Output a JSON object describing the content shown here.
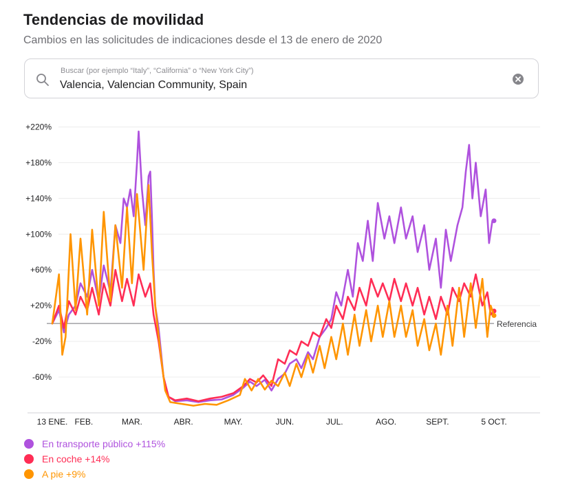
{
  "header": {
    "title": "Tendencias de movilidad",
    "subtitle": "Cambios en las solicitudes de indicaciones desde el 13 de enero de 2020"
  },
  "search": {
    "placeholder": "Buscar (por ejemplo “Italy”, “California” o “New York City”)",
    "value": "Valencia, Valencian Community, Spain",
    "search_icon": "search-icon",
    "clear_icon": "clear-icon"
  },
  "legend": [
    {
      "label": "En transporte público +115%",
      "color": "#af52de"
    },
    {
      "label": "En coche +14%",
      "color": "#ff2d55"
    },
    {
      "label": "A pie +9%",
      "color": "#ff9500"
    }
  ],
  "chart_data": {
    "type": "line",
    "title": "",
    "xlabel": "",
    "ylabel": "",
    "ylim": [
      -100,
      225
    ],
    "y_ticks": [
      220,
      180,
      140,
      100,
      60,
      20,
      -20,
      -60
    ],
    "y_tick_labels": [
      "+220%",
      "+180%",
      "+140%",
      "+100%",
      "+60%",
      "+20%",
      "-20%",
      "-60%"
    ],
    "x_ticks": [
      "2020-01-13",
      "2020-02-01",
      "2020-03-01",
      "2020-04-01",
      "2020-05-01",
      "2020-06-01",
      "2020-07-01",
      "2020-08-01",
      "2020-09-01",
      "2020-10-05"
    ],
    "x_tick_labels": [
      "13 ENE.",
      "FEB.",
      "MAR.",
      "ABR.",
      "MAY.",
      "JUN.",
      "JUL.",
      "AGO.",
      "SEPT.",
      "5 OCT."
    ],
    "baseline": {
      "value": 0,
      "label": "Referencia"
    },
    "grid": true,
    "series": [
      {
        "name": "En transporte público",
        "color": "#af52de",
        "points": [
          [
            "2020-01-13",
            0
          ],
          [
            "2020-01-17",
            15
          ],
          [
            "2020-01-20",
            -10
          ],
          [
            "2020-01-23",
            10
          ],
          [
            "2020-01-27",
            20
          ],
          [
            "2020-01-30",
            45
          ],
          [
            "2020-02-03",
            30
          ],
          [
            "2020-02-06",
            60
          ],
          [
            "2020-02-10",
            25
          ],
          [
            "2020-02-13",
            65
          ],
          [
            "2020-02-17",
            35
          ],
          [
            "2020-02-20",
            110
          ],
          [
            "2020-02-23",
            90
          ],
          [
            "2020-02-25",
            140
          ],
          [
            "2020-02-27",
            130
          ],
          [
            "2020-02-29",
            150
          ],
          [
            "2020-03-02",
            120
          ],
          [
            "2020-03-04",
            180
          ],
          [
            "2020-03-05",
            215
          ],
          [
            "2020-03-07",
            150
          ],
          [
            "2020-03-09",
            110
          ],
          [
            "2020-03-11",
            165
          ],
          [
            "2020-03-12",
            170
          ],
          [
            "2020-03-13",
            120
          ],
          [
            "2020-03-14",
            60
          ],
          [
            "2020-03-15",
            20
          ],
          [
            "2020-03-17",
            -5
          ],
          [
            "2020-03-20",
            -60
          ],
          [
            "2020-03-23",
            -82
          ],
          [
            "2020-03-27",
            -87
          ],
          [
            "2020-04-03",
            -86
          ],
          [
            "2020-04-10",
            -88
          ],
          [
            "2020-04-17",
            -86
          ],
          [
            "2020-04-24",
            -85
          ],
          [
            "2020-05-01",
            -80
          ],
          [
            "2020-05-07",
            -72
          ],
          [
            "2020-05-11",
            -65
          ],
          [
            "2020-05-15",
            -70
          ],
          [
            "2020-05-20",
            -63
          ],
          [
            "2020-05-24",
            -75
          ],
          [
            "2020-05-28",
            -62
          ],
          [
            "2020-06-01",
            -56
          ],
          [
            "2020-06-04",
            -45
          ],
          [
            "2020-06-08",
            -40
          ],
          [
            "2020-06-11",
            -50
          ],
          [
            "2020-06-15",
            -32
          ],
          [
            "2020-06-18",
            -40
          ],
          [
            "2020-06-22",
            -15
          ],
          [
            "2020-06-26",
            -5
          ],
          [
            "2020-06-29",
            5
          ],
          [
            "2020-07-02",
            35
          ],
          [
            "2020-07-05",
            20
          ],
          [
            "2020-07-09",
            60
          ],
          [
            "2020-07-12",
            30
          ],
          [
            "2020-07-15",
            90
          ],
          [
            "2020-07-18",
            70
          ],
          [
            "2020-07-21",
            115
          ],
          [
            "2020-07-24",
            70
          ],
          [
            "2020-07-27",
            135
          ],
          [
            "2020-07-31",
            95
          ],
          [
            "2020-08-03",
            120
          ],
          [
            "2020-08-06",
            90
          ],
          [
            "2020-08-10",
            130
          ],
          [
            "2020-08-13",
            95
          ],
          [
            "2020-08-17",
            120
          ],
          [
            "2020-08-20",
            80
          ],
          [
            "2020-08-24",
            110
          ],
          [
            "2020-08-27",
            60
          ],
          [
            "2020-08-31",
            95
          ],
          [
            "2020-09-03",
            40
          ],
          [
            "2020-09-06",
            105
          ],
          [
            "2020-09-09",
            70
          ],
          [
            "2020-09-13",
            110
          ],
          [
            "2020-09-16",
            130
          ],
          [
            "2020-09-18",
            170
          ],
          [
            "2020-09-20",
            200
          ],
          [
            "2020-09-22",
            140
          ],
          [
            "2020-09-24",
            180
          ],
          [
            "2020-09-27",
            120
          ],
          [
            "2020-09-30",
            150
          ],
          [
            "2020-10-02",
            90
          ],
          [
            "2020-10-04",
            115
          ],
          [
            "2020-10-05",
            115
          ]
        ]
      },
      {
        "name": "En coche",
        "color": "#ff2d55",
        "points": [
          [
            "2020-01-13",
            0
          ],
          [
            "2020-01-17",
            20
          ],
          [
            "2020-01-20",
            -5
          ],
          [
            "2020-01-23",
            25
          ],
          [
            "2020-01-27",
            10
          ],
          [
            "2020-01-30",
            30
          ],
          [
            "2020-02-03",
            15
          ],
          [
            "2020-02-06",
            40
          ],
          [
            "2020-02-10",
            10
          ],
          [
            "2020-02-13",
            45
          ],
          [
            "2020-02-17",
            20
          ],
          [
            "2020-02-20",
            60
          ],
          [
            "2020-02-24",
            25
          ],
          [
            "2020-02-27",
            50
          ],
          [
            "2020-03-02",
            20
          ],
          [
            "2020-03-05",
            55
          ],
          [
            "2020-03-09",
            30
          ],
          [
            "2020-03-12",
            45
          ],
          [
            "2020-03-14",
            10
          ],
          [
            "2020-03-17",
            -20
          ],
          [
            "2020-03-20",
            -60
          ],
          [
            "2020-03-23",
            -82
          ],
          [
            "2020-03-27",
            -86
          ],
          [
            "2020-04-03",
            -84
          ],
          [
            "2020-04-10",
            -87
          ],
          [
            "2020-04-17",
            -84
          ],
          [
            "2020-04-24",
            -82
          ],
          [
            "2020-05-01",
            -78
          ],
          [
            "2020-05-07",
            -70
          ],
          [
            "2020-05-11",
            -62
          ],
          [
            "2020-05-15",
            -66
          ],
          [
            "2020-05-19",
            -58
          ],
          [
            "2020-05-24",
            -70
          ],
          [
            "2020-05-28",
            -40
          ],
          [
            "2020-06-01",
            -45
          ],
          [
            "2020-06-04",
            -30
          ],
          [
            "2020-06-08",
            -35
          ],
          [
            "2020-06-11",
            -20
          ],
          [
            "2020-06-15",
            -25
          ],
          [
            "2020-06-18",
            -10
          ],
          [
            "2020-06-22",
            -15
          ],
          [
            "2020-06-26",
            5
          ],
          [
            "2020-06-29",
            -5
          ],
          [
            "2020-07-02",
            20
          ],
          [
            "2020-07-06",
            5
          ],
          [
            "2020-07-09",
            30
          ],
          [
            "2020-07-13",
            15
          ],
          [
            "2020-07-16",
            40
          ],
          [
            "2020-07-20",
            20
          ],
          [
            "2020-07-23",
            50
          ],
          [
            "2020-07-27",
            30
          ],
          [
            "2020-07-30",
            45
          ],
          [
            "2020-08-03",
            25
          ],
          [
            "2020-08-06",
            50
          ],
          [
            "2020-08-10",
            25
          ],
          [
            "2020-08-13",
            45
          ],
          [
            "2020-08-17",
            20
          ],
          [
            "2020-08-20",
            40
          ],
          [
            "2020-08-24",
            10
          ],
          [
            "2020-08-27",
            30
          ],
          [
            "2020-08-31",
            5
          ],
          [
            "2020-09-03",
            30
          ],
          [
            "2020-09-07",
            10
          ],
          [
            "2020-09-10",
            40
          ],
          [
            "2020-09-14",
            25
          ],
          [
            "2020-09-17",
            45
          ],
          [
            "2020-09-21",
            30
          ],
          [
            "2020-09-24",
            55
          ],
          [
            "2020-09-28",
            20
          ],
          [
            "2020-10-01",
            35
          ],
          [
            "2020-10-03",
            10
          ],
          [
            "2020-10-05",
            14
          ]
        ]
      },
      {
        "name": "A pie",
        "color": "#ff9500",
        "points": [
          [
            "2020-01-13",
            0
          ],
          [
            "2020-01-17",
            55
          ],
          [
            "2020-01-19",
            -35
          ],
          [
            "2020-01-21",
            -15
          ],
          [
            "2020-01-24",
            100
          ],
          [
            "2020-01-27",
            15
          ],
          [
            "2020-01-30",
            95
          ],
          [
            "2020-02-03",
            10
          ],
          [
            "2020-02-06",
            105
          ],
          [
            "2020-02-10",
            20
          ],
          [
            "2020-02-13",
            125
          ],
          [
            "2020-02-17",
            25
          ],
          [
            "2020-02-20",
            110
          ],
          [
            "2020-02-24",
            40
          ],
          [
            "2020-02-27",
            130
          ],
          [
            "2020-03-01",
            45
          ],
          [
            "2020-03-04",
            145
          ],
          [
            "2020-03-08",
            60
          ],
          [
            "2020-03-11",
            155
          ],
          [
            "2020-03-13",
            80
          ],
          [
            "2020-03-15",
            20
          ],
          [
            "2020-03-18",
            -30
          ],
          [
            "2020-03-21",
            -75
          ],
          [
            "2020-03-24",
            -88
          ],
          [
            "2020-03-31",
            -90
          ],
          [
            "2020-04-07",
            -92
          ],
          [
            "2020-04-14",
            -90
          ],
          [
            "2020-04-21",
            -91
          ],
          [
            "2020-04-28",
            -86
          ],
          [
            "2020-05-05",
            -80
          ],
          [
            "2020-05-08",
            -62
          ],
          [
            "2020-05-12",
            -75
          ],
          [
            "2020-05-16",
            -62
          ],
          [
            "2020-05-20",
            -74
          ],
          [
            "2020-05-24",
            -64
          ],
          [
            "2020-05-28",
            -70
          ],
          [
            "2020-06-01",
            -55
          ],
          [
            "2020-06-04",
            -70
          ],
          [
            "2020-06-08",
            -45
          ],
          [
            "2020-06-11",
            -60
          ],
          [
            "2020-06-15",
            -35
          ],
          [
            "2020-06-18",
            -55
          ],
          [
            "2020-06-22",
            -25
          ],
          [
            "2020-06-25",
            -50
          ],
          [
            "2020-06-29",
            -15
          ],
          [
            "2020-07-02",
            -40
          ],
          [
            "2020-07-06",
            0
          ],
          [
            "2020-07-09",
            -35
          ],
          [
            "2020-07-13",
            10
          ],
          [
            "2020-07-16",
            -25
          ],
          [
            "2020-07-20",
            15
          ],
          [
            "2020-07-23",
            -20
          ],
          [
            "2020-07-27",
            20
          ],
          [
            "2020-07-30",
            -15
          ],
          [
            "2020-08-03",
            25
          ],
          [
            "2020-08-06",
            -15
          ],
          [
            "2020-08-10",
            20
          ],
          [
            "2020-08-13",
            -15
          ],
          [
            "2020-08-17",
            15
          ],
          [
            "2020-08-20",
            -25
          ],
          [
            "2020-08-24",
            5
          ],
          [
            "2020-08-27",
            -30
          ],
          [
            "2020-08-31",
            0
          ],
          [
            "2020-09-03",
            -35
          ],
          [
            "2020-09-07",
            20
          ],
          [
            "2020-09-10",
            -25
          ],
          [
            "2020-09-14",
            40
          ],
          [
            "2020-09-17",
            -15
          ],
          [
            "2020-09-21",
            45
          ],
          [
            "2020-09-24",
            -5
          ],
          [
            "2020-09-28",
            50
          ],
          [
            "2020-10-01",
            -15
          ],
          [
            "2020-10-03",
            20
          ],
          [
            "2020-10-05",
            9
          ]
        ]
      }
    ]
  }
}
